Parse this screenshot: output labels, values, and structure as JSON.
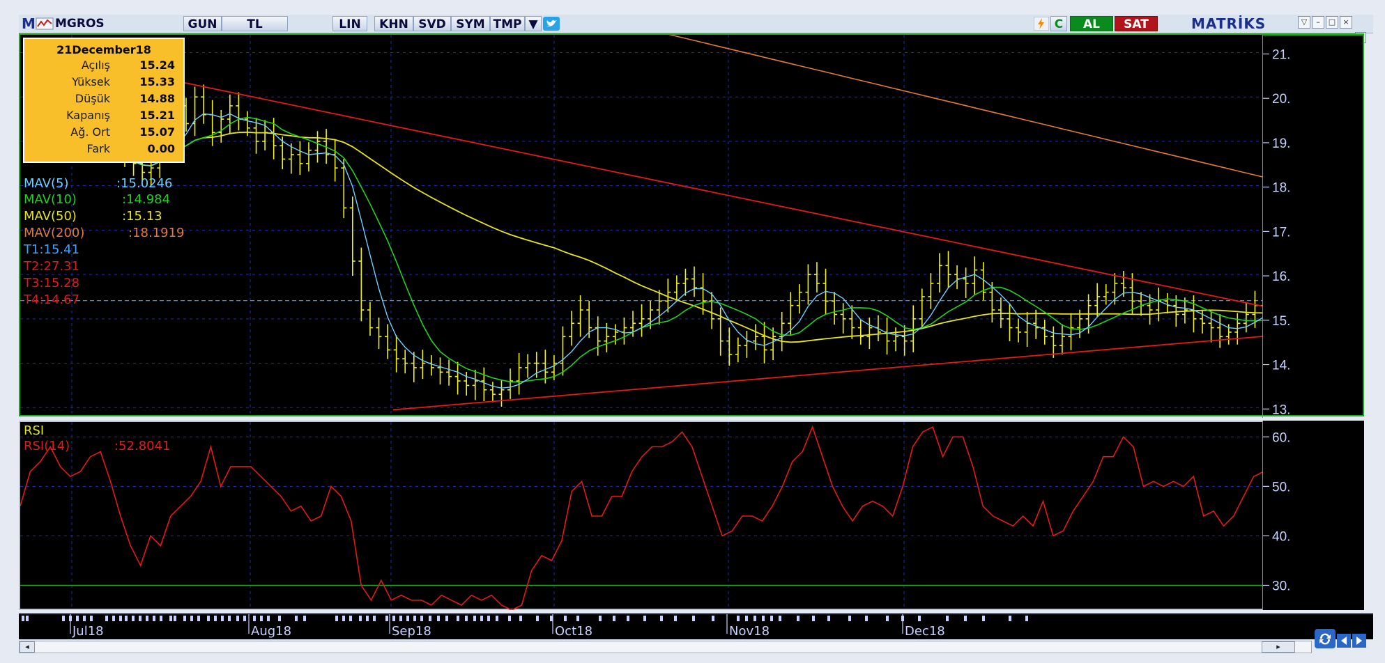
{
  "toolbar": {
    "m_label": "M",
    "symbol": "MGROS",
    "buttons": [
      "GUN",
      "TL",
      "LIN",
      "KHN",
      "SVD",
      "SYM",
      "TMP"
    ],
    "buy_label": "AL",
    "sell_label": "SAT",
    "brand": "MATRİKS",
    "refresh_icon_label": "C"
  },
  "info_box": {
    "date": "21December18",
    "rows": [
      {
        "k": "Açılış",
        "v": "15.24"
      },
      {
        "k": "Yüksek",
        "v": "15.33"
      },
      {
        "k": "Düşük",
        "v": "14.88"
      },
      {
        "k": "Kapanış",
        "v": "15.21"
      },
      {
        "k": "Ağ. Ort",
        "v": "15.07"
      },
      {
        "k": "Fark",
        "v": "0.00"
      }
    ]
  },
  "legend": {
    "mav5": {
      "label": "MAV(5)",
      "value": ":15.0246",
      "color": "#6fd0ff"
    },
    "mav10": {
      "label": "MAV(10)",
      "value": ":14.984",
      "color": "#21d321"
    },
    "mav50": {
      "label": "MAV(50)",
      "value": ":15.13",
      "color": "#e6e61a"
    },
    "mav200": {
      "label": "MAV(200)",
      "value": ":18.1919",
      "color": "#e07b39"
    },
    "t1": {
      "text": "T1:15.41",
      "color": "#3fa2ff"
    },
    "t2": {
      "text": "T2:27.31",
      "color": "#e11a1a"
    },
    "t3": {
      "text": "T3:15.28",
      "color": "#e11a1a"
    },
    "t4": {
      "text": "T4:14.67",
      "color": "#e11a1a"
    }
  },
  "rsi_legend": {
    "title": "RSI",
    "label": "RSI(14)",
    "value": ":52.8041"
  },
  "price_axis": {
    "ticks": [
      "21.",
      "20.",
      "19.",
      "18.",
      "17.",
      "16.",
      "15.",
      "14.",
      "13."
    ]
  },
  "rsi_axis": {
    "ticks": [
      "60.",
      "50.",
      "40.",
      "30."
    ]
  },
  "date_axis": {
    "labels": [
      "Jul18",
      "Aug18",
      "Sep18",
      "Oct18",
      "Nov18",
      "Dec18"
    ]
  },
  "colors": {
    "candle": "#f2f21b",
    "mav5": "#6fd0ff",
    "mav10": "#21d321",
    "mav50": "#e6e61a",
    "mav200": "#e07b39",
    "trend": "#e11a1a",
    "rsi": "#e11a1a",
    "grid": "#1c2fb0",
    "pane_border": "#1fa61f"
  },
  "chart_data": [
    {
      "type": "line",
      "title": "MGROS",
      "ylim": [
        12.8,
        21.4
      ],
      "series": [
        {
          "name": "MAV(5)",
          "last": 15.0246
        },
        {
          "name": "MAV(10)",
          "last": 14.984
        },
        {
          "name": "MAV(50)",
          "last": 15.13
        },
        {
          "name": "MAV(200)",
          "last": 18.1919
        }
      ],
      "x": [
        "Jul18",
        "Aug18",
        "Sep18",
        "Oct18",
        "Nov18",
        "Dec18"
      ],
      "price_close_approx": [
        18.6,
        18.5,
        18.3,
        18.4,
        18.9,
        19.3,
        19.8,
        19.4,
        20.0,
        19.6,
        19.2,
        19.5,
        19.8,
        19.5,
        19.3,
        19.0,
        19.2,
        18.9,
        18.6,
        18.7,
        18.5,
        18.8,
        19.0,
        18.7,
        18.4,
        17.5,
        16.3,
        15.2,
        14.8,
        14.6,
        14.3,
        14.1,
        14.0,
        13.9,
        14.0,
        13.9,
        13.8,
        13.7,
        13.6,
        13.5,
        13.6,
        13.4,
        13.3,
        13.4,
        13.6,
        13.9,
        14.0,
        14.0,
        13.8,
        14.0,
        14.6,
        14.9,
        15.2,
        14.8,
        14.5,
        14.6,
        14.7,
        14.8,
        14.9,
        15.0,
        15.2,
        15.4,
        15.6,
        15.8,
        15.9,
        15.7,
        15.4,
        15.0,
        14.5,
        14.2,
        14.4,
        14.5,
        14.6,
        14.3,
        14.6,
        14.9,
        15.3,
        15.6,
        16.0,
        15.8,
        15.4,
        15.1,
        15.0,
        14.8,
        14.6,
        14.8,
        14.7,
        14.5,
        14.6,
        14.5,
        15.0,
        15.5,
        15.8,
        16.2,
        16.0,
        15.9,
        15.8,
        16.1,
        15.6,
        15.2,
        15.0,
        14.8,
        14.7,
        14.9,
        14.8,
        14.6,
        14.4,
        14.6,
        14.8,
        15.0,
        15.3,
        15.5,
        15.6,
        15.8,
        15.7,
        15.4,
        15.3,
        15.2,
        15.4,
        15.3,
        15.1,
        15.2,
        15.0,
        14.9,
        14.8,
        14.6,
        14.7,
        14.9,
        15.1,
        15.3,
        15.21
      ]
    },
    {
      "type": "line",
      "title": "RSI",
      "ylim": [
        25,
        63
      ],
      "series": [
        {
          "name": "RSI(14)",
          "values": [
            46,
            53,
            55,
            58,
            54,
            52,
            53,
            56,
            57,
            51,
            44,
            38,
            34,
            40,
            38,
            44,
            46,
            48,
            51,
            58,
            50,
            54,
            54,
            54,
            52,
            50,
            48,
            45,
            46,
            43,
            44,
            50,
            48,
            43,
            30,
            27,
            31,
            27,
            28,
            27,
            27,
            26,
            28,
            27,
            26,
            28,
            27,
            28,
            26,
            25,
            26,
            33,
            36,
            35,
            39,
            49,
            51,
            44,
            44,
            48,
            48,
            53,
            56,
            58,
            58,
            59,
            61,
            58,
            52,
            46,
            40,
            41,
            44,
            44,
            43,
            46,
            50,
            55,
            57,
            62,
            56,
            50,
            46,
            43,
            46,
            47,
            46,
            44,
            50,
            58,
            61,
            62,
            56,
            60,
            60,
            54,
            46,
            44,
            43,
            42,
            44,
            42,
            47,
            40,
            41,
            45,
            48,
            51,
            56,
            56,
            60,
            58,
            50,
            51,
            50,
            51,
            50,
            52,
            44,
            45,
            42,
            44,
            48,
            52,
            53
          ]
        }
      ],
      "reference_line": 30
    }
  ]
}
